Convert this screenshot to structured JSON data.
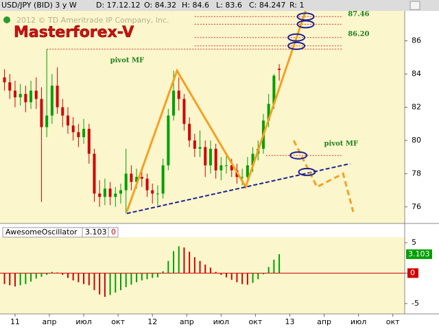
{
  "header": {
    "symbol": "USD/JPY (BID) 3 у W",
    "date": "D: 17.12.12",
    "open": "O: 84.32",
    "high": "H: 84.6",
    "low": "L: 83.6",
    "close": "C: 84.247",
    "range": "R: 1",
    "title": "Masterforex-V",
    "copyright": "2012 © TD Ameritrade IP Company, Inc."
  },
  "chart_data": [
    {
      "type": "candlestick",
      "x": [
        -4,
        -2,
        0,
        2,
        4,
        6,
        8,
        10,
        12,
        14,
        16,
        18,
        20,
        22,
        24,
        26,
        28,
        30,
        32,
        34,
        36,
        38,
        40,
        42,
        44,
        46,
        48,
        50,
        52,
        54,
        56,
        58,
        60,
        62,
        64,
        66,
        68,
        70,
        72,
        74,
        76,
        78,
        80,
        82,
        84,
        86,
        88,
        90,
        92,
        94,
        96,
        98,
        100
      ],
      "open": [
        83.8,
        83.5,
        83.0,
        82.6,
        82.8,
        82.3,
        83.0,
        82.5,
        80.8,
        81.5,
        83.3,
        82.0,
        81.5,
        80.9,
        80.5,
        80.2,
        80.7,
        79.2,
        76.8,
        76.6,
        77.1,
        76.6,
        76.8,
        77.0,
        78.0,
        77.5,
        77.8,
        77.7,
        77.0,
        76.8,
        76.8,
        78.5,
        81.5,
        83.0,
        82.5,
        81.0,
        80.0,
        79.5,
        79.6,
        78.5,
        79.5,
        78.2,
        78.5,
        78.5,
        78.2,
        77.8,
        77.8,
        78.5,
        79.2,
        79.5,
        81.2,
        82.2,
        84.32
      ],
      "high": [
        84.3,
        84.0,
        83.6,
        83.4,
        83.3,
        83.6,
        83.8,
        83.2,
        85.5,
        84.0,
        84.4,
        82.5,
        82.0,
        81.4,
        81.0,
        81.3,
        81.0,
        79.5,
        77.6,
        77.7,
        77.5,
        77.2,
        77.4,
        79.5,
        78.5,
        78.3,
        78.2,
        78.0,
        77.4,
        77.3,
        78.9,
        81.9,
        84.2,
        83.8,
        82.8,
        81.4,
        80.4,
        80.6,
        80.0,
        80.0,
        79.8,
        79.0,
        79.2,
        78.9,
        78.6,
        78.3,
        79.0,
        79.6,
        80.0,
        81.6,
        82.8,
        84.0,
        84.6
      ],
      "low": [
        83.0,
        82.5,
        82.0,
        82.1,
        81.7,
        81.9,
        81.9,
        76.3,
        80.2,
        81.0,
        81.6,
        80.8,
        80.4,
        80.0,
        79.6,
        79.8,
        78.6,
        76.3,
        76.0,
        76.1,
        76.1,
        76.0,
        76.2,
        75.6,
        77.0,
        77.1,
        77.2,
        76.6,
        76.2,
        76.1,
        76.5,
        78.2,
        81.2,
        81.8,
        80.6,
        79.6,
        79.0,
        79.0,
        77.8,
        78.0,
        77.7,
        77.6,
        78.0,
        77.8,
        77.4,
        77.3,
        77.4,
        78.1,
        78.8,
        79.2,
        80.8,
        81.9,
        83.6
      ],
      "close": [
        83.5,
        83.0,
        82.6,
        82.8,
        82.3,
        83.0,
        82.5,
        80.8,
        81.5,
        83.3,
        82.0,
        81.5,
        80.9,
        80.5,
        80.2,
        80.7,
        79.2,
        76.8,
        76.6,
        77.1,
        76.6,
        76.8,
        77.0,
        78.0,
        77.5,
        77.8,
        77.7,
        77.0,
        76.8,
        76.8,
        78.5,
        81.5,
        83.0,
        82.5,
        81.0,
        80.0,
        79.5,
        79.6,
        78.5,
        79.5,
        78.2,
        78.5,
        78.5,
        78.2,
        77.8,
        77.8,
        78.5,
        79.2,
        79.5,
        81.2,
        82.2,
        83.9,
        84.247
      ],
      "up_color": "#00a000",
      "down_color": "#d00000",
      "xlim": [
        -5.7,
        147.5
      ],
      "xticks": [
        {
          "value": 0,
          "label": "11"
        },
        {
          "value": 13,
          "label": "апр"
        },
        {
          "value": 26,
          "label": "июл"
        },
        {
          "value": 39,
          "label": "окт"
        },
        {
          "value": 52,
          "label": "12"
        },
        {
          "value": 65,
          "label": "апр"
        },
        {
          "value": 78,
          "label": "июл"
        },
        {
          "value": 91,
          "label": "окт"
        },
        {
          "value": 104,
          "label": "13"
        },
        {
          "value": 117,
          "label": "апр"
        },
        {
          "value": 130,
          "label": "июл"
        },
        {
          "value": 143,
          "label": "окт"
        }
      ],
      "ylim": [
        75,
        87.8
      ],
      "yticks": [
        76,
        78,
        80,
        82,
        84,
        86
      ],
      "levels": [
        {
          "value": 85.5,
          "from": 12,
          "to": 124
        },
        {
          "value": 87.46,
          "from": 68,
          "to": 124
        },
        {
          "value": 87.0,
          "from": 68,
          "to": 124
        },
        {
          "value": 86.2,
          "from": 68,
          "to": 124
        },
        {
          "value": 85.7,
          "from": 68,
          "to": 124
        },
        {
          "value": 79.1,
          "from": 95,
          "to": 124
        }
      ],
      "level_color": "#e03030",
      "annotations": [
        {
          "text": "pivot MF",
          "x": 36,
          "y": 84.8
        },
        {
          "text": "87.46",
          "x": 126,
          "y": 87.6
        },
        {
          "text": "86.20",
          "x": 126,
          "y": 86.4
        },
        {
          "text": "pivot MF",
          "x": 117,
          "y": 79.8
        }
      ],
      "zigzag": {
        "x": [
          42.3,
          61.3,
          87.3,
          110.0
        ],
        "y": [
          75.7,
          84.2,
          77.2,
          87.8
        ],
        "color": "#f5a020"
      },
      "trendline": {
        "x": [
          42.3,
          126.8
        ],
        "y": [
          75.6,
          78.6
        ],
        "color": "#202090"
      },
      "forecast": {
        "x": [
          105.5,
          114.3,
          124.2,
          128.0
        ],
        "y": [
          80.0,
          77.2,
          78.0,
          75.7
        ],
        "color": "#f5a020"
      },
      "circles": {
        "x": [
          110.0,
          110.0,
          106.5,
          106.5,
          107.3,
          110.5
        ],
        "y": [
          87.46,
          87.0,
          86.2,
          85.7,
          79.1,
          78.1
        ]
      }
    },
    {
      "type": "bar",
      "name": "AwesomeOscillator",
      "param": 0,
      "x": [
        -4,
        -2,
        0,
        2,
        4,
        6,
        8,
        10,
        12,
        14,
        16,
        18,
        20,
        22,
        24,
        26,
        28,
        30,
        32,
        34,
        36,
        38,
        40,
        42,
        44,
        46,
        48,
        50,
        52,
        54,
        56,
        58,
        60,
        62,
        64,
        66,
        68,
        70,
        72,
        74,
        76,
        78,
        80,
        82,
        84,
        86,
        88,
        90,
        92,
        94,
        96,
        98,
        100
      ],
      "values": [
        -1.8,
        -2.0,
        -2.2,
        -2.0,
        -1.8,
        -1.4,
        -0.9,
        -0.6,
        -0.3,
        0.2,
        0.1,
        -0.3,
        -0.8,
        -1.2,
        -1.5,
        -1.8,
        -2.0,
        -2.8,
        -3.5,
        -3.9,
        -3.6,
        -3.2,
        -2.8,
        -2.3,
        -1.9,
        -1.5,
        -1.2,
        -1.0,
        -0.8,
        -0.7,
        0.3,
        2.0,
        3.6,
        4.4,
        4.2,
        3.5,
        2.6,
        2.0,
        1.4,
        0.9,
        0.2,
        -0.3,
        -0.7,
        -1.1,
        -1.5,
        -1.8,
        -1.9,
        -1.6,
        -1.0,
        -0.2,
        1.0,
        2.2,
        3.103
      ],
      "up_color": "#00a000",
      "down_color": "#d00000",
      "ylim": [
        -6.7,
        5.9
      ],
      "yticks": [
        5,
        0,
        -5
      ]
    }
  ]
}
